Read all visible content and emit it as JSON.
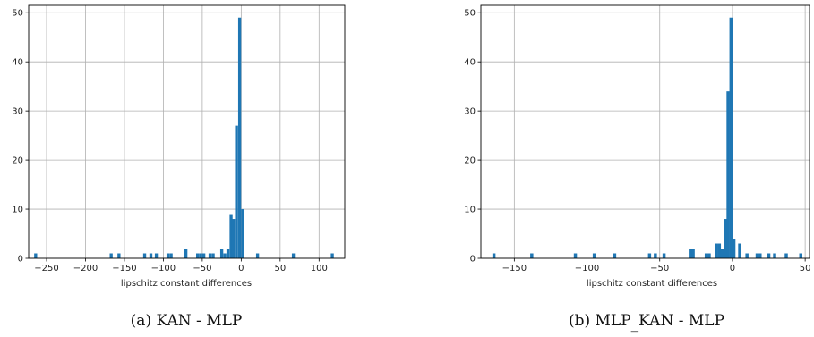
{
  "chart_data": [
    {
      "type": "bar",
      "xlabel": "lipschitz constant differences",
      "ylabel": "",
      "caption": "(a) KAN - MLP",
      "xlim": [
        -273,
        133
      ],
      "ylim": [
        0,
        51.5
      ],
      "xticks": [
        -250,
        -200,
        -150,
        -100,
        -50,
        0,
        50,
        100
      ],
      "yticks": [
        0,
        10,
        20,
        30,
        40,
        50
      ],
      "grid": true,
      "color": "#1f77b4",
      "bin_width": 3.85,
      "bins": [
        [
          -264,
          1
        ],
        [
          -167,
          1
        ],
        [
          -157,
          1
        ],
        [
          -124,
          1
        ],
        [
          -116,
          1
        ],
        [
          -109,
          1
        ],
        [
          -94,
          1
        ],
        [
          -90,
          1
        ],
        [
          -71,
          2
        ],
        [
          -56,
          1
        ],
        [
          -52,
          1
        ],
        [
          -48,
          1
        ],
        [
          -40,
          1
        ],
        [
          -36,
          1
        ],
        [
          -25,
          2
        ],
        [
          -21,
          1
        ],
        [
          -17,
          2
        ],
        [
          -13,
          9
        ],
        [
          -10,
          8
        ],
        [
          -6,
          27
        ],
        [
          -2,
          49
        ],
        [
          2,
          10
        ],
        [
          21,
          1
        ],
        [
          67,
          1
        ],
        [
          117,
          1
        ]
      ]
    },
    {
      "type": "bar",
      "xlabel": "lipschitz constant differences",
      "ylabel": "",
      "caption": "(b) MLP_KAN - MLP",
      "xlim": [
        -173,
        53
      ],
      "ylim": [
        0,
        51.5
      ],
      "xticks": [
        -150,
        -100,
        -50,
        0,
        50
      ],
      "yticks": [
        0,
        10,
        20,
        30,
        40,
        50
      ],
      "grid": true,
      "color": "#1f77b4",
      "bin_width": 2.15,
      "bins": [
        [
          -164,
          1
        ],
        [
          -138,
          1
        ],
        [
          -108,
          1
        ],
        [
          -95,
          1
        ],
        [
          -81,
          1
        ],
        [
          -57,
          1
        ],
        [
          -53,
          1
        ],
        [
          -47,
          1
        ],
        [
          -29,
          2
        ],
        [
          -27,
          2
        ],
        [
          -18,
          1
        ],
        [
          -16,
          1
        ],
        [
          -11,
          3
        ],
        [
          -9,
          3
        ],
        [
          -7,
          2
        ],
        [
          -5,
          8
        ],
        [
          -3,
          34
        ],
        [
          -1,
          49
        ],
        [
          1,
          4
        ],
        [
          5,
          3
        ],
        [
          10,
          1
        ],
        [
          17,
          1
        ],
        [
          19,
          1
        ],
        [
          25,
          1
        ],
        [
          29,
          1
        ],
        [
          37,
          1
        ],
        [
          47,
          1
        ]
      ]
    }
  ]
}
